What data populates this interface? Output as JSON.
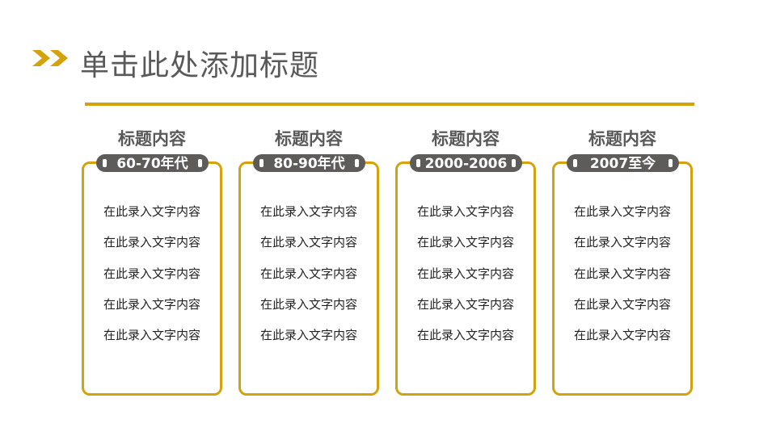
{
  "title": "单击此处添加标题",
  "accent": "#D4A20C",
  "columns": [
    {
      "heading": "标题内容",
      "period": "60-70年代",
      "lines": [
        "在此录入文字内容",
        "在此录入文字内容",
        "在此录入文字内容",
        "在此录入文字内容",
        "在此录入文字内容"
      ]
    },
    {
      "heading": "标题内容",
      "period": "80-90年代",
      "lines": [
        "在此录入文字内容",
        "在此录入文字内容",
        "在此录入文字内容",
        "在此录入文字内容",
        "在此录入文字内容"
      ]
    },
    {
      "heading": "标题内容",
      "period": "2000-2006",
      "lines": [
        "在此录入文字内容",
        "在此录入文字内容",
        "在此录入文字内容",
        "在此录入文字内容",
        "在此录入文字内容"
      ]
    },
    {
      "heading": "标题内容",
      "period": "2007至今",
      "lines": [
        "在此录入文字内容",
        "在此录入文字内容",
        "在此录入文字内容",
        "在此录入文字内容",
        "在此录入文字内容"
      ]
    }
  ]
}
